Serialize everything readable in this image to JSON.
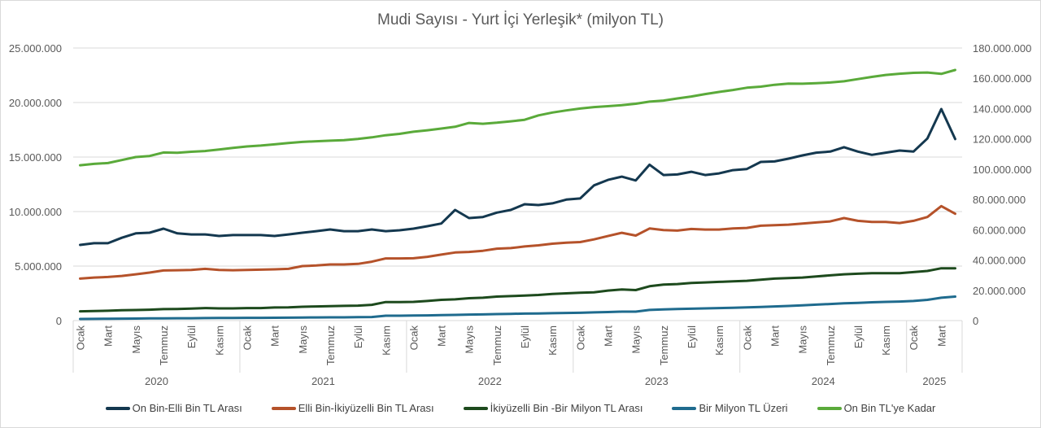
{
  "chart_data": {
    "type": "line",
    "title": "Mudi Sayısı - Yurt İçi Yerleşik* (milyon TL)",
    "y_left": {
      "min": 0,
      "max": 25000000,
      "step": 5000000,
      "tick_labels": [
        "0",
        "5.000.000",
        "10.000.000",
        "15.000.000",
        "20.000.000",
        "25.000.000"
      ]
    },
    "y_right": {
      "min": 0,
      "max": 180000000,
      "step": 20000000,
      "tick_labels": [
        "0",
        "20.000.000",
        "40.000.000",
        "60.000.000",
        "80.000.000",
        "100.000.000",
        "120.000.000",
        "140.000.000",
        "160.000.000",
        "180.000.000"
      ]
    },
    "grid": true,
    "legend": "bottom",
    "year_groups": [
      {
        "label": "2020",
        "months": 12
      },
      {
        "label": "2021",
        "months": 12
      },
      {
        "label": "2022",
        "months": 12
      },
      {
        "label": "2023",
        "months": 12
      },
      {
        "label": "2024",
        "months": 12
      },
      {
        "label": "2025",
        "months": 4
      }
    ],
    "year_tick_labels": [
      [
        "Ocak",
        "",
        "Mart",
        "",
        "Mayıs",
        "",
        "Temmuz",
        "",
        "Eylül",
        "",
        "Kasım",
        ""
      ],
      [
        "Ocak",
        "",
        "Mart",
        "",
        "Mayıs",
        "",
        "Temmuz",
        "",
        "Eylül",
        "",
        "Kasım",
        ""
      ],
      [
        "Ocak",
        "",
        "Mart",
        "",
        "Mayıs",
        "",
        "Temmuz",
        "",
        "Eylül",
        "",
        "Kasım",
        ""
      ],
      [
        "Ocak",
        "",
        "Mart",
        "",
        "Mayıs",
        "",
        "Temmuz",
        "",
        "Eylül",
        "",
        "Kasım",
        ""
      ],
      [
        "Ocak",
        "",
        "Mart",
        "",
        "Mayıs",
        "",
        "Temmuz",
        "",
        "Eylül",
        "",
        "Kasım",
        ""
      ],
      [
        "Ocak",
        "",
        "Mart",
        ""
      ]
    ],
    "series": [
      {
        "name": "On Bin-Elli Bin TL Arası",
        "axis": "left",
        "color": "#14384f",
        "values_millions": [
          6.94,
          7.1,
          7.1,
          7.6,
          8.0,
          8.06,
          8.43,
          8.0,
          7.9,
          7.9,
          7.76,
          7.84,
          7.84,
          7.84,
          7.76,
          7.9,
          8.06,
          8.2,
          8.36,
          8.2,
          8.2,
          8.36,
          8.2,
          8.28,
          8.43,
          8.66,
          8.9,
          10.15,
          9.4,
          9.5,
          9.9,
          10.15,
          10.67,
          10.6,
          10.75,
          11.1,
          11.2,
          12.4,
          12.9,
          13.2,
          12.85,
          14.3,
          13.35,
          13.4,
          13.65,
          13.35,
          13.5,
          13.8,
          13.9,
          14.55,
          14.6,
          14.85,
          15.15,
          15.4,
          15.5,
          15.9,
          15.5,
          15.2,
          15.4,
          15.6,
          15.5,
          16.7,
          19.4,
          16.65
        ]
      },
      {
        "name": "Elli Bin-İkiyüzelli Bin TL Arası",
        "axis": "left",
        "color": "#b5522a",
        "values_millions": [
          3.85,
          3.95,
          4.0,
          4.1,
          4.25,
          4.4,
          4.6,
          4.62,
          4.65,
          4.75,
          4.65,
          4.62,
          4.65,
          4.67,
          4.7,
          4.75,
          5.0,
          5.05,
          5.15,
          5.15,
          5.2,
          5.4,
          5.7,
          5.7,
          5.72,
          5.85,
          6.05,
          6.25,
          6.3,
          6.4,
          6.6,
          6.65,
          6.8,
          6.9,
          7.05,
          7.15,
          7.2,
          7.45,
          7.75,
          8.05,
          7.8,
          8.45,
          8.3,
          8.25,
          8.4,
          8.35,
          8.35,
          8.45,
          8.5,
          8.7,
          8.75,
          8.8,
          8.9,
          9.0,
          9.1,
          9.4,
          9.15,
          9.05,
          9.05,
          8.95,
          9.15,
          9.5,
          10.5,
          9.8
        ]
      },
      {
        "name": "İkiyüzelli Bin -Bir Milyon  TL Arası",
        "axis": "left",
        "color": "#1d4a1d",
        "values_millions": [
          0.85,
          0.87,
          0.9,
          0.95,
          0.97,
          1.0,
          1.05,
          1.07,
          1.1,
          1.15,
          1.12,
          1.12,
          1.15,
          1.15,
          1.2,
          1.22,
          1.27,
          1.3,
          1.32,
          1.35,
          1.37,
          1.45,
          1.7,
          1.7,
          1.72,
          1.8,
          1.9,
          1.95,
          2.05,
          2.1,
          2.2,
          2.25,
          2.3,
          2.35,
          2.45,
          2.5,
          2.55,
          2.6,
          2.75,
          2.85,
          2.8,
          3.15,
          3.3,
          3.35,
          3.45,
          3.5,
          3.55,
          3.6,
          3.65,
          3.75,
          3.85,
          3.9,
          3.95,
          4.05,
          4.15,
          4.25,
          4.3,
          4.35,
          4.35,
          4.35,
          4.45,
          4.55,
          4.8,
          4.8
        ]
      },
      {
        "name": "Bir Milyon TL Üzeri",
        "axis": "left",
        "color": "#1f6b8e",
        "values_millions": [
          0.15,
          0.16,
          0.17,
          0.18,
          0.19,
          0.2,
          0.21,
          0.22,
          0.22,
          0.23,
          0.24,
          0.24,
          0.25,
          0.25,
          0.26,
          0.27,
          0.28,
          0.29,
          0.3,
          0.3,
          0.31,
          0.33,
          0.45,
          0.45,
          0.46,
          0.48,
          0.5,
          0.52,
          0.55,
          0.57,
          0.6,
          0.62,
          0.64,
          0.66,
          0.68,
          0.7,
          0.72,
          0.75,
          0.78,
          0.82,
          0.82,
          0.98,
          1.03,
          1.06,
          1.09,
          1.12,
          1.15,
          1.18,
          1.21,
          1.25,
          1.3,
          1.34,
          1.4,
          1.46,
          1.52,
          1.58,
          1.63,
          1.68,
          1.72,
          1.75,
          1.8,
          1.9,
          2.1,
          2.2
        ]
      },
      {
        "name": "On Bin TL'ye Kadar",
        "axis": "right",
        "color": "#5aaa3a",
        "values_millions": [
          102.6,
          103.5,
          104,
          106,
          108,
          108.7,
          111,
          110.8,
          111.5,
          112,
          113,
          114,
          115,
          115.6,
          116.4,
          117.3,
          118,
          118.4,
          118.8,
          119.2,
          120,
          121,
          122.4,
          123.3,
          124.7,
          125.7,
          126.8,
          128,
          130.5,
          130,
          130.7,
          131.6,
          132.6,
          135.5,
          137.4,
          138.8,
          140,
          141,
          141.6,
          142.2,
          143.2,
          144.6,
          145.3,
          146.7,
          148,
          149.6,
          151,
          152.3,
          153.8,
          154.5,
          155.7,
          156.5,
          156.4,
          156.8,
          157.2,
          158.0,
          159.5,
          160.9,
          162.2,
          163.0,
          163.6,
          163.8,
          162.9,
          165.5
        ]
      }
    ]
  }
}
